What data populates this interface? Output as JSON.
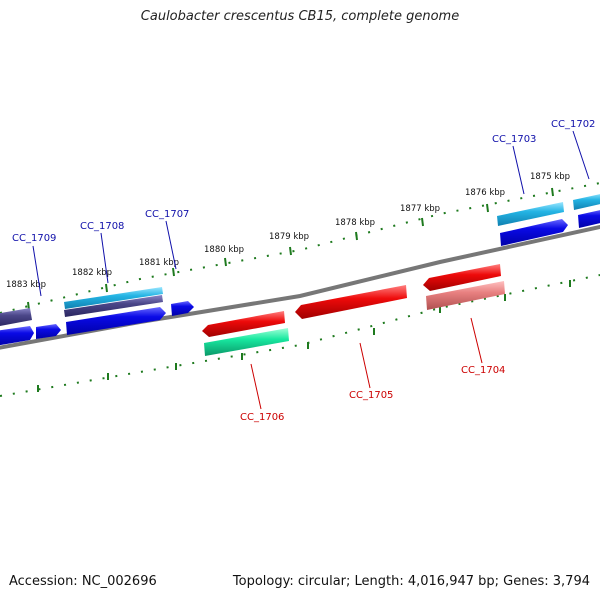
{
  "title": "Caulobacter crescentus CB15, complete genome",
  "accession_label": "Accession: NC_002696",
  "summary_label": "Topology: circular; Length: 4,016,947 bp; Genes: 3,794",
  "colors": {
    "backbone": "#777777",
    "tick": "#1e7a1e",
    "label_forward": "#1010aa",
    "label_reverse": "#cc0000",
    "blue": "#0a0ae6",
    "dark_purple": "#4a4688",
    "cyan": "#24b4e4",
    "red": "#ee0a0a",
    "pink": "#e88080",
    "teal": "#18e8a0"
  },
  "ruler": {
    "tick_labels": [
      {
        "text": "1883 kbp",
        "kbp": 1883
      },
      {
        "text": "1882 kbp",
        "kbp": 1882
      },
      {
        "text": "1881 kbp",
        "kbp": 1881
      },
      {
        "text": "1880 kbp",
        "kbp": 1880
      },
      {
        "text": "1879 kbp",
        "kbp": 1879
      },
      {
        "text": "1878 kbp",
        "kbp": 1878
      },
      {
        "text": "1877 kbp",
        "kbp": 1877
      },
      {
        "text": "1876 kbp",
        "kbp": 1876
      },
      {
        "text": "1875 kbp",
        "kbp": 1875
      }
    ]
  },
  "genes": [
    {
      "name": "CC_1709",
      "strand": "forward"
    },
    {
      "name": "CC_1708",
      "strand": "forward"
    },
    {
      "name": "CC_1707",
      "strand": "forward"
    },
    {
      "name": "CC_1703",
      "strand": "forward"
    },
    {
      "name": "CC_1702",
      "strand": "forward"
    },
    {
      "name": "CC_1706",
      "strand": "reverse"
    },
    {
      "name": "CC_1705",
      "strand": "reverse"
    },
    {
      "name": "CC_1704",
      "strand": "reverse"
    }
  ]
}
